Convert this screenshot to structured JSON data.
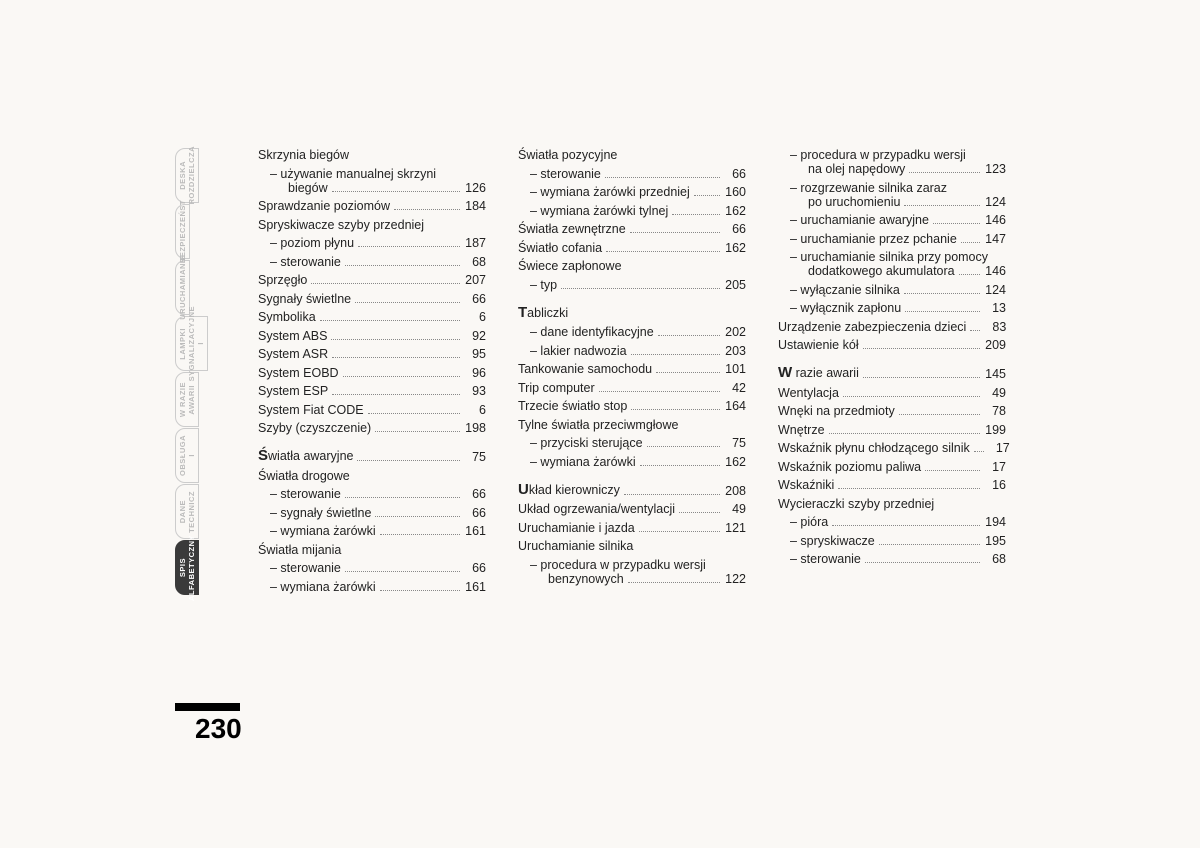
{
  "pageNumber": "230",
  "tabs": [
    {
      "label": "DESKA ROZDZIELCZA",
      "active": false
    },
    {
      "label": "BEZPIECZEŃST",
      "active": false
    },
    {
      "label": "URUCHAMIANIE",
      "active": false
    },
    {
      "label": "LAMPKI SYGNALIZACYJNE I",
      "active": false
    },
    {
      "label": "W RAZIE AWARII",
      "active": false
    },
    {
      "label": "OBSŁUGA I",
      "active": false
    },
    {
      "label": "DANE TECHNICZ",
      "active": false
    },
    {
      "label": "SPIS ALFABETYCZNY",
      "active": true
    }
  ],
  "col1": [
    {
      "text": "Skrzynia biegów",
      "page": "",
      "type": "plain"
    },
    {
      "text": "– używanie manualnej skrzyni",
      "page": "",
      "type": "sub-multi"
    },
    {
      "text": "biegów",
      "page": "126",
      "type": "subsub"
    },
    {
      "text": "Sprawdzanie poziomów",
      "page": "184",
      "type": "plain"
    },
    {
      "text": "Spryskiwacze szyby przedniej",
      "page": "",
      "type": "plain"
    },
    {
      "text": "– poziom płynu",
      "page": "187",
      "type": "sub"
    },
    {
      "text": "– sterowanie",
      "page": "68",
      "type": "sub"
    },
    {
      "text": "Sprzęgło",
      "page": "207",
      "type": "plain"
    },
    {
      "text": "Sygnały świetlne",
      "page": "66",
      "type": "plain"
    },
    {
      "text": "Symbolika",
      "page": "6",
      "type": "plain"
    },
    {
      "text": "System ABS",
      "page": "92",
      "type": "plain"
    },
    {
      "text": "System ASR",
      "page": "95",
      "type": "plain"
    },
    {
      "text": "System EOBD",
      "page": "96",
      "type": "plain"
    },
    {
      "text": "System ESP",
      "page": "93",
      "type": "plain"
    },
    {
      "text": "System Fiat CODE",
      "page": "6",
      "type": "plain"
    },
    {
      "text": "Szyby (czyszczenie)",
      "page": "198",
      "type": "plain"
    },
    {
      "text": "wiatła awaryjne",
      "page": "75",
      "type": "section",
      "letter": "Ś"
    },
    {
      "text": "Światła drogowe",
      "page": "",
      "type": "plain"
    },
    {
      "text": "– sterowanie",
      "page": "66",
      "type": "sub"
    },
    {
      "text": "– sygnały świetlne",
      "page": "66",
      "type": "sub"
    },
    {
      "text": "– wymiana żarówki",
      "page": "161",
      "type": "sub"
    },
    {
      "text": "Światła mijania",
      "page": "",
      "type": "plain"
    },
    {
      "text": "– sterowanie",
      "page": "66",
      "type": "sub"
    },
    {
      "text": "– wymiana żarówki",
      "page": "161",
      "type": "sub"
    }
  ],
  "col2": [
    {
      "text": "Światła pozycyjne",
      "page": "",
      "type": "plain"
    },
    {
      "text": "– sterowanie",
      "page": "66",
      "type": "sub"
    },
    {
      "text": "– wymiana żarówki przedniej",
      "page": "160",
      "type": "sub"
    },
    {
      "text": "– wymiana żarówki tylnej",
      "page": "162",
      "type": "sub"
    },
    {
      "text": "Światła zewnętrzne",
      "page": "66",
      "type": "plain"
    },
    {
      "text": "Światło cofania",
      "page": "162",
      "type": "plain"
    },
    {
      "text": "Świece zapłonowe",
      "page": "",
      "type": "plain"
    },
    {
      "text": "– typ",
      "page": "205",
      "type": "sub"
    },
    {
      "text": "abliczki",
      "page": "",
      "type": "section",
      "letter": "T"
    },
    {
      "text": "– dane identyfikacyjne",
      "page": "202",
      "type": "sub"
    },
    {
      "text": "– lakier nadwozia",
      "page": "203",
      "type": "sub"
    },
    {
      "text": "Tankowanie samochodu",
      "page": "101",
      "type": "plain"
    },
    {
      "text": "Trip computer",
      "page": "42",
      "type": "plain"
    },
    {
      "text": "Trzecie światło stop",
      "page": "164",
      "type": "plain"
    },
    {
      "text": "Tylne światła przeciwmgłowe",
      "page": "",
      "type": "plain"
    },
    {
      "text": "– przyciski sterujące",
      "page": "75",
      "type": "sub"
    },
    {
      "text": "– wymiana żarówki",
      "page": "162",
      "type": "sub"
    },
    {
      "text": "kład kierowniczy",
      "page": "208",
      "type": "section",
      "letter": "U"
    },
    {
      "text": "Układ ogrzewania/wentylacji",
      "page": "49",
      "type": "plain"
    },
    {
      "text": "Uruchamianie i jazda",
      "page": "121",
      "type": "plain"
    },
    {
      "text": "Uruchamianie silnika",
      "page": "",
      "type": "plain"
    },
    {
      "text": "– procedura w przypadku wersji",
      "page": "",
      "type": "sub-multi"
    },
    {
      "text": "benzynowych",
      "page": "122",
      "type": "subsub"
    }
  ],
  "col3": [
    {
      "text": "– procedura w przypadku wersji",
      "page": "",
      "type": "sub-multi"
    },
    {
      "text": "na olej napędowy",
      "page": "123",
      "type": "subsub"
    },
    {
      "text": "– rozgrzewanie silnika zaraz",
      "page": "",
      "type": "sub-multi"
    },
    {
      "text": "po uruchomieniu",
      "page": "124",
      "type": "subsub"
    },
    {
      "text": "– uruchamianie awaryjne",
      "page": "146",
      "type": "sub"
    },
    {
      "text": "– uruchamianie przez pchanie",
      "page": "147",
      "type": "sub"
    },
    {
      "text": "– uruchamianie silnika przy pomocy",
      "page": "",
      "type": "sub-multi"
    },
    {
      "text": "dodatkowego akumulatora",
      "page": "146",
      "type": "subsub"
    },
    {
      "text": "– wyłączanie silnika",
      "page": "124",
      "type": "sub"
    },
    {
      "text": "– wyłącznik zapłonu",
      "page": "13",
      "type": "sub"
    },
    {
      "text": "Urządzenie zabezpieczenia dzieci",
      "page": "83",
      "type": "plain"
    },
    {
      "text": "Ustawienie kół",
      "page": "209",
      "type": "plain"
    },
    {
      "text": " razie awarii",
      "page": "145",
      "type": "section",
      "letter": "W"
    },
    {
      "text": "Wentylacja",
      "page": "49",
      "type": "plain"
    },
    {
      "text": "Wnęki na przedmioty",
      "page": "78",
      "type": "plain"
    },
    {
      "text": "Wnętrze",
      "page": "199",
      "type": "plain"
    },
    {
      "text": "Wskaźnik płynu chłodzącego silnik",
      "page": "17",
      "type": "plain"
    },
    {
      "text": "Wskaźnik poziomu paliwa",
      "page": "17",
      "type": "plain"
    },
    {
      "text": "Wskaźniki",
      "page": "16",
      "type": "plain"
    },
    {
      "text": "Wycieraczki szyby przedniej",
      "page": "",
      "type": "plain"
    },
    {
      "text": "– pióra",
      "page": "194",
      "type": "sub"
    },
    {
      "text": "– spryskiwacze",
      "page": "195",
      "type": "sub"
    },
    {
      "text": "– sterowanie",
      "page": "68",
      "type": "sub"
    }
  ]
}
